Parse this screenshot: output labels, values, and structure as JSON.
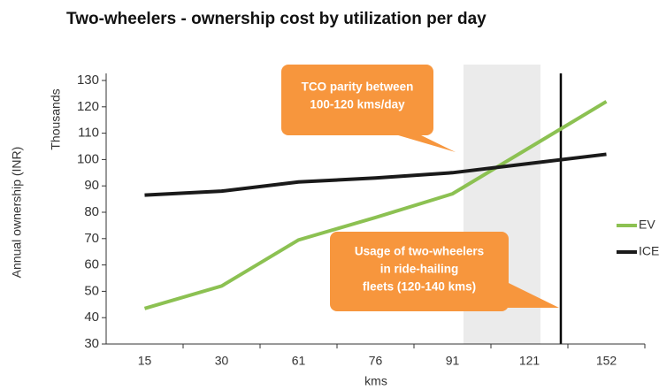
{
  "chart_data": {
    "type": "line",
    "title": "Two-wheelers - ownership cost by utilization per day",
    "y_label": "Annual ownership (INR)",
    "y_unit_label": "Thousands",
    "x_label": "kms",
    "categories": [
      "15",
      "30",
      "61",
      "76",
      "91",
      "121",
      "152"
    ],
    "series": [
      {
        "name": "EV",
        "color": "#8cc152",
        "values": [
          43.5,
          52,
          69.5,
          78,
          87,
          104.5,
          122
        ]
      },
      {
        "name": "ICE",
        "color": "#1a1a1a",
        "values": [
          86.5,
          88,
          91.5,
          93,
          95,
          98.5,
          102
        ]
      }
    ],
    "ylim": [
      30,
      130
    ],
    "yticks": [
      30,
      40,
      50,
      60,
      70,
      80,
      90,
      100,
      110,
      120,
      130
    ],
    "legend": "right",
    "annotations": [
      {
        "lines": [
          "TCO parity between",
          "100-120 kms/day"
        ]
      },
      {
        "lines": [
          "Usage of two-wheelers",
          "in ride-hailing",
          "fleets (120-140 kms)"
        ]
      }
    ]
  }
}
